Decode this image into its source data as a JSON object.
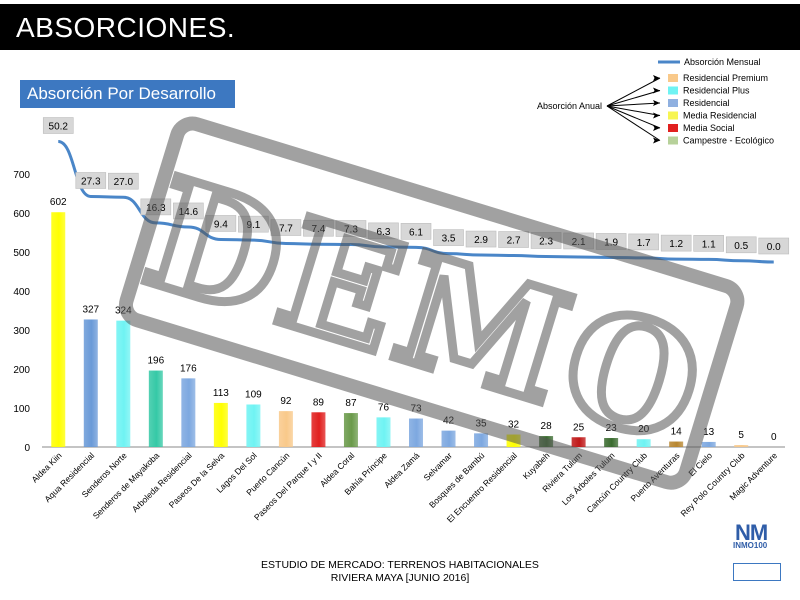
{
  "header": {
    "title": "ABSORCIONES."
  },
  "section": {
    "label": "Absorción Por Desarrollo"
  },
  "footer": {
    "line1": "ESTUDIO DE MERCADO: TERRENOS HABITACIONALES",
    "line2": "RIVIERA MAYA [JUNIO 2016]"
  },
  "logo": {
    "mark": "NM",
    "text": "INMO100"
  },
  "watermark": {
    "text": "DEMO"
  },
  "legend": {
    "line_label": "Absorción Mensual",
    "annual_label": "Absorción Anual",
    "items": [
      {
        "label": "Residencial  Premium",
        "color": "#f9c98a"
      },
      {
        "label": "Residencial  Plus",
        "color": "#6ff3f3"
      },
      {
        "label": "Residencial",
        "color": "#8fb0e0"
      },
      {
        "label": "Media Residencial",
        "color": "#f7f552"
      },
      {
        "label": "Media Social",
        "color": "#e1201f"
      },
      {
        "label": "Campestre - Ecológico",
        "color": "#b7d19a"
      }
    ]
  },
  "chart_data": {
    "type": "bar",
    "categories": [
      "Aldea Kiin",
      "Aqua Residencial",
      "Senderos Norte",
      "Senderos de Mayakoba",
      "Arboleda Residencial",
      "Paseos De la Selva",
      "Lagos Del Sol",
      "Puerto Cancún",
      "Paseos Del Parque I y II",
      "Aldea Coral",
      "Bahía Príncipe",
      "Aldea Zamá",
      "Selvamar",
      "Bosques de Bambú",
      "El Encuentro Residencial",
      "Kuyabeh",
      "Riviera Tulum",
      "Los Árboles Tulum",
      "Cancún Country Club",
      "Puerto Aventuras",
      "El Cielo",
      "Rey Polo Country Club",
      "Magic Adventure"
    ],
    "series": [
      {
        "name": "Absorción Anual",
        "type": "bar",
        "values": [
          602,
          327,
          324,
          196,
          176,
          113,
          109,
          92,
          89,
          87,
          76,
          73,
          42,
          35,
          32,
          28,
          25,
          23,
          20,
          14,
          13,
          5,
          0
        ],
        "colors": [
          "#ffff00",
          "#6a9ad8",
          "#6ff3f3",
          "#35c9a6",
          "#7da8e0",
          "#ffff00",
          "#6ff3f3",
          "#f9c98a",
          "#e1201f",
          "#6a9a4a",
          "#6ff3f3",
          "#7da8e0",
          "#7da8e0",
          "#7da8e0",
          "#ffff00",
          "#3a6b2f",
          "#c01818",
          "#3a6b2f",
          "#6ff3f3",
          "#b8862f",
          "#7da8e0",
          "#f9c98a",
          "#d8d8d8"
        ]
      },
      {
        "name": "Absorción Mensual",
        "type": "line",
        "values": [
          50.2,
          27.3,
          27.0,
          16.3,
          14.6,
          9.4,
          9.1,
          7.7,
          7.4,
          7.3,
          6.3,
          6.1,
          3.5,
          2.9,
          2.7,
          2.3,
          2.1,
          1.9,
          1.7,
          1.2,
          1.1,
          0.5,
          0.0
        ]
      }
    ],
    "yticks": [
      0,
      100,
      200,
      300,
      400,
      500,
      600,
      700
    ],
    "ylim": [
      0,
      700
    ],
    "grid": false,
    "legend_position": "top-right"
  }
}
